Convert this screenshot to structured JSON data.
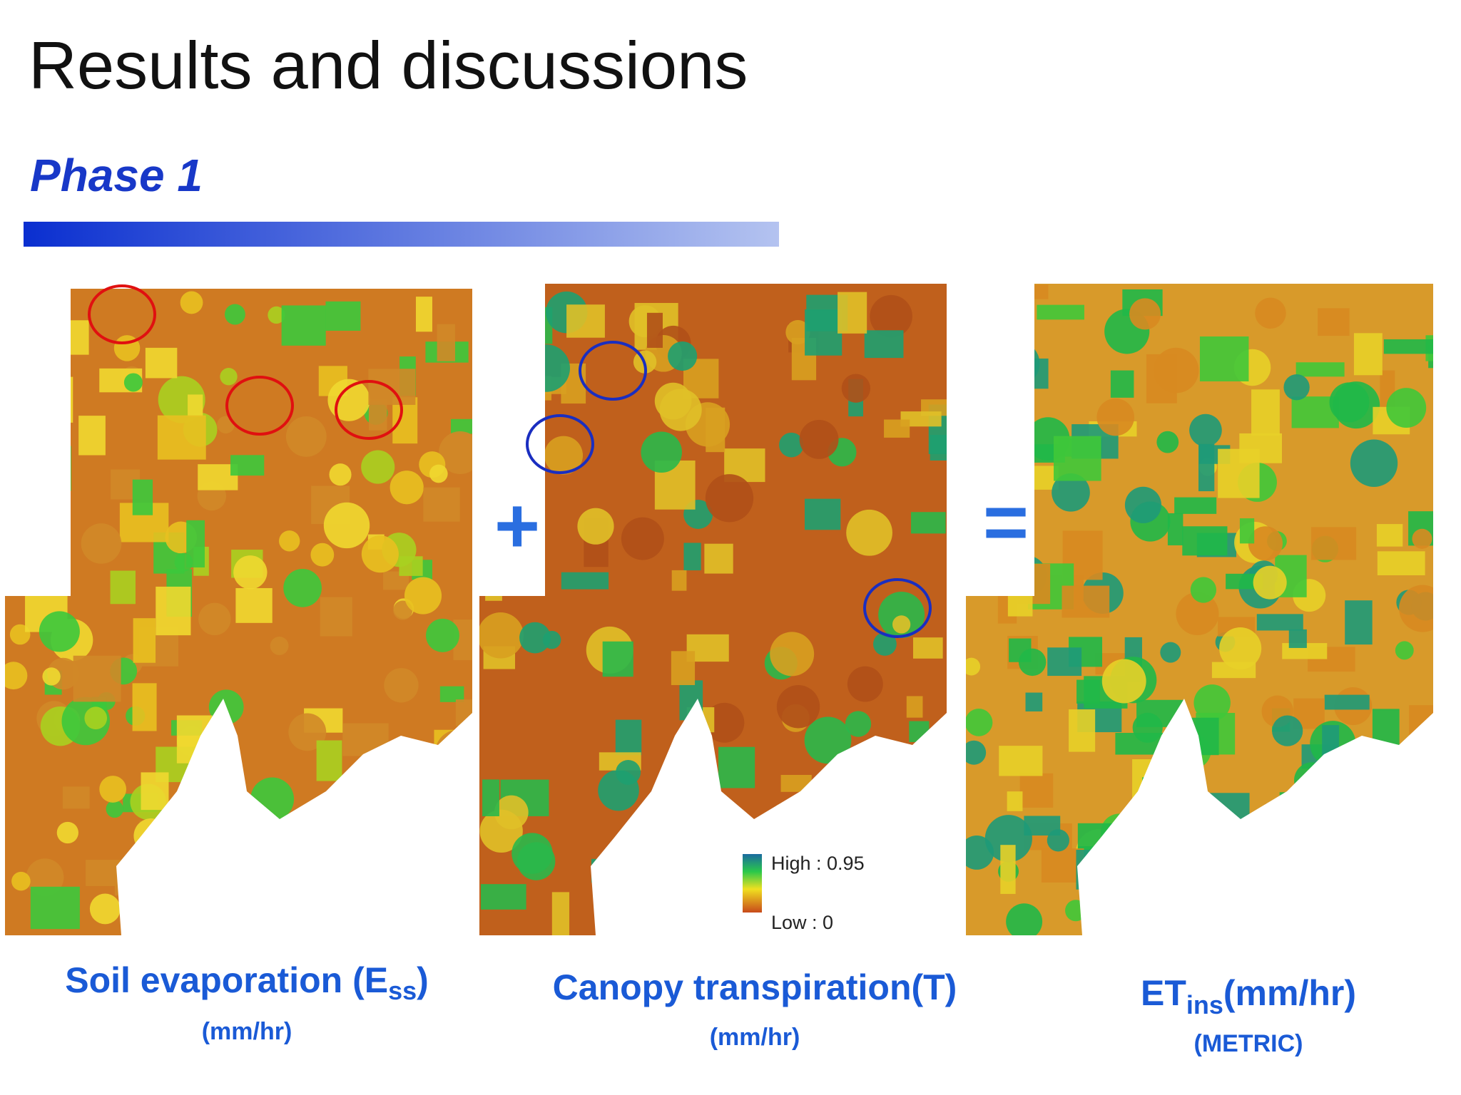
{
  "header": {
    "title": "Results and discussions",
    "subtitle": "Phase 1"
  },
  "panels": [
    {
      "label": "Soil evaporation (E",
      "label_sub": "ss",
      "label_end": ")",
      "unit": "(mm/hr)"
    },
    {
      "label": "Canopy transpiration(T)",
      "unit": "(mm/hr)"
    },
    {
      "label": "ET",
      "label_sub": "ins",
      "label_end": "(mm/hr)",
      "unit": "(METRIC)"
    }
  ],
  "operators": [
    "+",
    "="
  ],
  "legend": {
    "high": "High : 0.95",
    "low": "Low : 0"
  }
}
